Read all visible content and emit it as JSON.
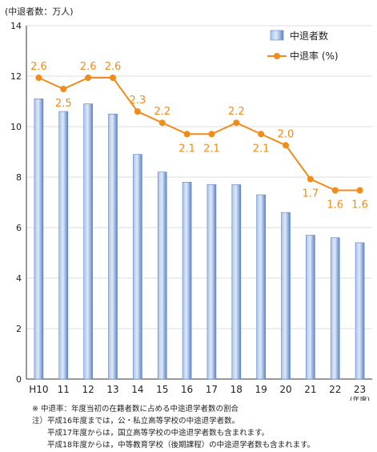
{
  "chart_data": {
    "type": "bar+line",
    "unit_label": "(中退者数：万人)",
    "categories": [
      "H10",
      "11",
      "12",
      "13",
      "14",
      "15",
      "16",
      "17",
      "18",
      "19",
      "20",
      "21",
      "22",
      "23"
    ],
    "x_unit": "(年度)",
    "series": [
      {
        "name": "中退者数",
        "type": "bar",
        "color": "#7ea3dc",
        "values": [
          11.1,
          10.6,
          10.9,
          10.5,
          8.9,
          8.2,
          7.8,
          7.7,
          7.7,
          7.3,
          6.6,
          5.7,
          5.6,
          5.4
        ]
      },
      {
        "name": "中退率 (%)",
        "type": "line",
        "color": "#ef8c1a",
        "values": [
          2.6,
          2.5,
          2.6,
          2.6,
          2.3,
          2.2,
          2.1,
          2.1,
          2.2,
          2.1,
          2.0,
          1.7,
          1.6,
          1.6
        ],
        "labels": [
          "2.6",
          "2.5",
          "2.6",
          "2.6",
          "2.3",
          "2.2",
          "2.1",
          "2.1",
          "2.2",
          "2.1",
          "2.0",
          "1.7",
          "1.6",
          "1.6"
        ]
      }
    ],
    "yticks": [
      "0",
      "2",
      "4",
      "6",
      "8",
      "10",
      "12",
      "14"
    ],
    "ylim": [
      0,
      14
    ],
    "legend_position": "top-right"
  },
  "notes": [
    "※ 中退率：年度当初の在籍者数に占める中途退学者数の割合",
    "注）平成16年度までは，公・私立高等学校の中途退学者数。",
    "　　平成17年度からは，国立高等学校の中途退学者数も含まれます。",
    "　　平成18年度からは，中等教育学校（後期課程）の中途退学者数も含まれます。"
  ]
}
